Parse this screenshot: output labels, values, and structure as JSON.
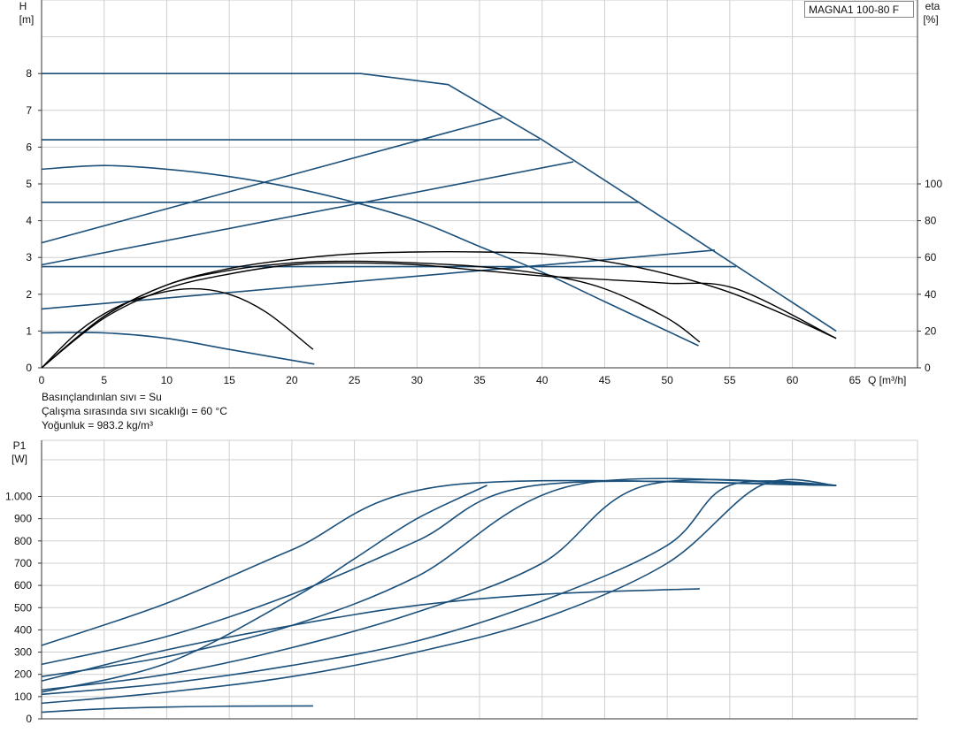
{
  "model": "MAGNA1 100-80 F",
  "fluid_info": [
    "Basınçlandınlan sıvı = Su",
    "Çalışma sırasında sıvı sıcaklığı = 60 °C",
    "Yoğunluk = 983.2 kg/m³"
  ],
  "colors": {
    "curve": "#1a4f7a",
    "eta": "#000000",
    "grid": "#cfcfcf",
    "axis": "#333333"
  },
  "chart_data": [
    {
      "type": "line",
      "title": "",
      "xlabel": "Q [m³/h]",
      "ylabel": "H\n[m]",
      "y2label": "eta\n[%]",
      "xlim": [
        0,
        70
      ],
      "ylim": [
        0,
        10
      ],
      "y2lim": [
        0,
        100
      ],
      "xticks": [
        0,
        5,
        10,
        15,
        20,
        25,
        30,
        35,
        40,
        45,
        50,
        55,
        60,
        65
      ],
      "yticks": [
        0,
        1,
        2,
        3,
        4,
        5,
        6,
        7,
        8
      ],
      "y2ticks": [
        0,
        20,
        40,
        60,
        80,
        100
      ],
      "grid": true,
      "series": [
        {
          "x": [
            0,
            5,
            10,
            25.5,
            32.5,
            40,
            50,
            63.5
          ],
          "y": [
            8,
            8,
            8,
            8,
            7.7,
            6.2,
            4.0,
            1.0
          ]
        },
        {
          "x": [
            0,
            39.8
          ],
          "y": [
            6.2,
            6.2
          ]
        },
        {
          "x": [
            0,
            47.8
          ],
          "y": [
            4.5,
            4.5
          ]
        },
        {
          "x": [
            0,
            55.5
          ],
          "y": [
            2.75,
            2.75
          ]
        },
        {
          "x": [
            0,
            36.8
          ],
          "y": [
            3.4,
            6.8
          ]
        },
        {
          "x": [
            0,
            42.5
          ],
          "y": [
            2.8,
            5.6
          ]
        },
        {
          "x": [
            0,
            53.8
          ],
          "y": [
            1.6,
            3.2
          ]
        },
        {
          "x": [
            0,
            5,
            10,
            15,
            20,
            25,
            30,
            35,
            40,
            45,
            52.5
          ],
          "y": [
            5.4,
            5.5,
            5.4,
            5.2,
            4.9,
            4.5,
            4.0,
            3.3,
            2.6,
            1.8,
            0.6
          ]
        },
        {
          "x": [
            0,
            5,
            10,
            15,
            21.8
          ],
          "y": [
            0.95,
            0.95,
            0.8,
            0.5,
            0.1
          ]
        },
        {
          "x": [
            0,
            5,
            10,
            15,
            20,
            25,
            30,
            35,
            40,
            45,
            50,
            55,
            60,
            63.5
          ],
          "y": [
            0,
            28,
            45,
            54,
            59,
            62,
            63,
            63,
            62,
            58,
            51,
            41,
            27,
            16
          ]
        },
        {
          "x": [
            0,
            5,
            10,
            15,
            20,
            25,
            30,
            35,
            40,
            45,
            50,
            52.6
          ],
          "y": [
            0,
            28,
            45,
            53,
            57,
            58,
            57,
            55,
            51,
            43,
            27,
            14
          ]
        },
        {
          "x": [
            0,
            5,
            10,
            15,
            20,
            25,
            30,
            35,
            40,
            45,
            50,
            55.5,
            63.5
          ],
          "y": [
            0,
            27,
            43,
            51,
            56,
            57,
            56,
            53,
            50,
            48,
            46,
            43,
            16
          ]
        },
        {
          "x": [
            0,
            3,
            6,
            9,
            12,
            15,
            18,
            21.7
          ],
          "y": [
            0,
            20,
            33,
            40,
            43,
            40,
            30,
            10
          ]
        }
      ]
    },
    {
      "type": "line",
      "title": "",
      "xlabel": "",
      "ylabel": "P1\n[W]",
      "xlim": [
        0,
        70
      ],
      "ylim": [
        0,
        1100
      ],
      "yticks": [
        0,
        100,
        200,
        300,
        400,
        500,
        600,
        700,
        800,
        900,
        1000
      ],
      "ytick_labels": [
        "0",
        "100",
        "200",
        "300",
        "400",
        "500",
        "600",
        "700",
        "800",
        "900",
        "1.000"
      ],
      "grid": true,
      "series": [
        {
          "x": [
            0,
            10,
            20,
            32.5,
            63.5
          ],
          "y": [
            330,
            520,
            760,
            1050,
            1050
          ]
        },
        {
          "x": [
            0,
            10,
            20,
            30,
            39.5,
            63.5
          ],
          "y": [
            245,
            370,
            560,
            800,
            1050,
            1050
          ]
        },
        {
          "x": [
            0,
            10,
            20,
            30,
            42.5,
            63.5
          ],
          "y": [
            190,
            280,
            420,
            640,
            1050,
            1050
          ]
        },
        {
          "x": [
            0,
            10,
            20,
            30,
            40,
            48.3,
            63.5
          ],
          "y": [
            130,
            200,
            320,
            480,
            700,
            1050,
            1050
          ]
        },
        {
          "x": [
            0,
            10,
            20,
            30,
            40,
            50,
            55,
            63.5
          ],
          "y": [
            110,
            160,
            240,
            350,
            530,
            780,
            1050,
            1050
          ]
        },
        {
          "x": [
            0,
            10,
            20,
            30,
            40,
            50,
            57.5,
            63.5
          ],
          "y": [
            70,
            120,
            190,
            300,
            450,
            700,
            1050,
            1050
          ]
        },
        {
          "x": [
            0,
            10,
            20,
            25,
            30,
            35.6
          ],
          "y": [
            120,
            250,
            540,
            720,
            900,
            1050
          ]
        },
        {
          "x": [
            0,
            10,
            20,
            30,
            40,
            52.6
          ],
          "y": [
            170,
            310,
            420,
            510,
            560,
            585
          ]
        },
        {
          "x": [
            0,
            5,
            10,
            15,
            21.7
          ],
          "y": [
            30,
            45,
            53,
            57,
            58
          ]
        }
      ]
    }
  ]
}
